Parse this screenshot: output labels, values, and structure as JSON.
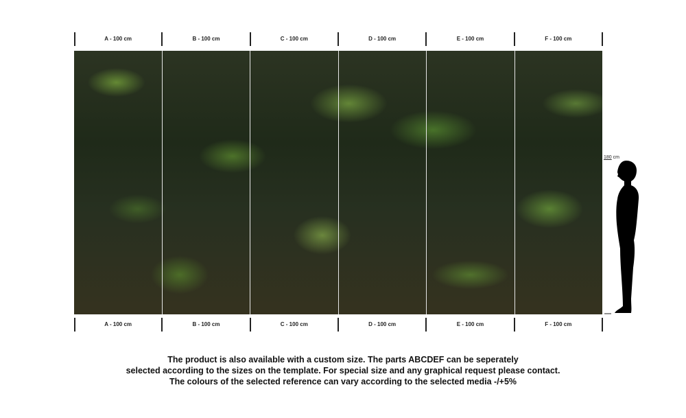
{
  "panels": [
    {
      "label": "A - 100 cm"
    },
    {
      "label": "B - 100 cm"
    },
    {
      "label": "C - 100 cm"
    },
    {
      "label": "D - 100 cm"
    },
    {
      "label": "E - 100 cm"
    },
    {
      "label": "F - 100 cm"
    }
  ],
  "height_marker": {
    "value": "180",
    "unit": "cm"
  },
  "note": {
    "line1": "The product is also available with a custom size. The parts ABCDEF can be seperately",
    "line2": "selected according to the sizes on the template. For special size and any graphical request please contact.",
    "line3": "The colours of the selected reference can vary according to the selected media -/+5%"
  }
}
